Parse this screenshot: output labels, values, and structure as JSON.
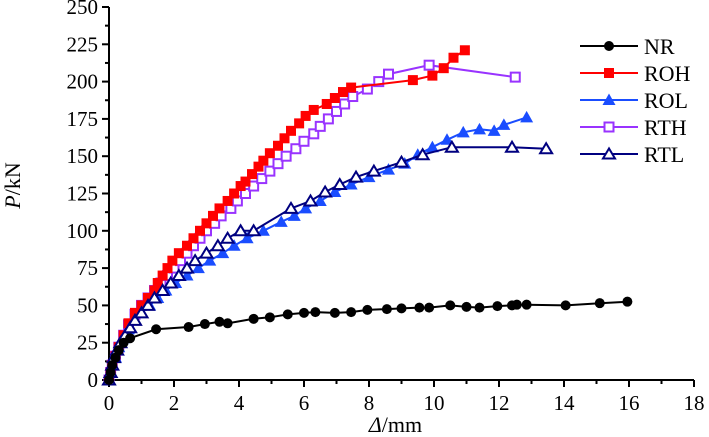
{
  "chart_data": {
    "type": "line",
    "title": "",
    "xlabel_italic": "Δ",
    "xlabel_unit": "/mm",
    "ylabel_italic": "P",
    "ylabel_unit": "/kN",
    "xlim": [
      0,
      18
    ],
    "ylim": [
      0,
      250
    ],
    "xticks": [
      0,
      2,
      4,
      6,
      8,
      10,
      12,
      14,
      16,
      18
    ],
    "yticks": [
      0,
      25,
      50,
      75,
      100,
      125,
      150,
      175,
      200,
      225,
      250
    ],
    "grid": false,
    "legend_position": "top-right",
    "series": [
      {
        "name": "NR",
        "color": "#000000",
        "marker": "circle-filled",
        "x": [
          0,
          0.05,
          0.1,
          0.2,
          0.3,
          0.45,
          0.65,
          1.45,
          2.45,
          2.95,
          3.4,
          3.65,
          4.45,
          4.95,
          5.5,
          6.0,
          6.35,
          6.95,
          7.45,
          7.95,
          8.55,
          9.0,
          9.55,
          9.85,
          10.5,
          11.0,
          11.4,
          11.95,
          12.4,
          12.55,
          12.85,
          14.05,
          15.1,
          15.95
        ],
        "y": [
          0,
          5,
          10,
          15,
          20,
          25,
          28,
          34,
          35.5,
          37.5,
          39,
          38,
          41,
          42,
          44,
          45,
          45.5,
          45,
          45.5,
          47,
          47.5,
          48,
          48.5,
          48.5,
          50,
          49,
          48.5,
          49.5,
          50,
          50.5,
          50.5,
          50,
          51.5,
          52.5
        ]
      },
      {
        "name": "ROH",
        "color": "#ff0000",
        "marker": "square-filled",
        "x": [
          0,
          0.05,
          0.1,
          0.2,
          0.3,
          0.45,
          0.6,
          0.8,
          1.0,
          1.2,
          1.4,
          1.5,
          1.65,
          1.8,
          1.95,
          2.15,
          2.4,
          2.6,
          2.8,
          3.0,
          3.2,
          3.4,
          3.65,
          3.85,
          4.05,
          4.2,
          4.4,
          4.6,
          4.75,
          4.95,
          5.2,
          5.4,
          5.6,
          5.85,
          6.05,
          6.3,
          6.7,
          6.95,
          7.2,
          7.45,
          9.35,
          9.95,
          10.3,
          10.6,
          10.95
        ],
        "y": [
          0,
          5,
          10,
          16,
          22,
          30,
          38,
          45,
          50,
          55,
          60,
          65,
          70,
          75,
          80,
          85,
          90,
          95,
          100,
          105,
          110,
          115,
          120,
          125,
          130,
          133,
          138,
          143,
          147,
          152,
          157,
          162,
          167,
          172,
          177,
          181,
          185,
          189,
          193,
          196,
          201,
          204,
          209,
          216,
          221
        ]
      },
      {
        "name": "ROL",
        "color": "#1a4dff",
        "marker": "triangle-filled",
        "x": [
          0,
          0.05,
          0.1,
          0.2,
          0.3,
          0.45,
          0.6,
          0.8,
          1.0,
          1.25,
          1.5,
          1.75,
          2.05,
          2.4,
          2.75,
          3.1,
          3.5,
          3.85,
          4.25,
          4.75,
          5.3,
          5.7,
          6.05,
          6.5,
          6.95,
          7.45,
          8.0,
          8.6,
          9.1,
          9.5,
          9.95,
          10.4,
          10.9,
          11.4,
          11.85,
          12.15,
          12.85
        ],
        "y": [
          0,
          5,
          10,
          15,
          22,
          28,
          34,
          40,
          45,
          50,
          55,
          60,
          65,
          70,
          75,
          80,
          85,
          90,
          95,
          100,
          106,
          110,
          115,
          120,
          126,
          131,
          136,
          141,
          145,
          151,
          156,
          161,
          166,
          168,
          167,
          171,
          176
        ]
      },
      {
        "name": "RTH",
        "color": "#9933ff",
        "marker": "square-open",
        "x": [
          0,
          0.05,
          0.1,
          0.2,
          0.3,
          0.45,
          0.6,
          0.8,
          1.0,
          1.2,
          1.4,
          1.6,
          1.8,
          2.0,
          2.2,
          2.4,
          2.6,
          2.8,
          3.0,
          3.25,
          3.45,
          3.75,
          3.95,
          4.2,
          4.45,
          4.7,
          4.95,
          5.2,
          5.45,
          5.75,
          6.0,
          6.3,
          6.5,
          6.75,
          7.0,
          7.25,
          7.5,
          7.95,
          8.3,
          8.6,
          9.85,
          12.5
        ],
        "y": [
          0,
          5,
          10,
          16,
          22,
          30,
          37,
          44,
          50,
          55,
          60,
          65,
          70,
          75,
          80,
          85,
          90,
          95,
          100,
          105,
          110,
          115,
          120,
          125,
          130,
          135,
          140,
          145,
          150,
          155,
          160,
          165,
          170,
          175,
          180,
          185,
          190,
          195,
          200,
          205,
          211,
          203
        ]
      },
      {
        "name": "RTL",
        "color": "#000080",
        "marker": "triangle-open",
        "x": [
          0,
          0.05,
          0.1,
          0.15,
          0.25,
          0.35,
          0.5,
          0.65,
          0.8,
          1.0,
          1.2,
          1.4,
          1.65,
          1.9,
          2.15,
          2.4,
          2.65,
          3.0,
          3.35,
          3.65,
          4.05,
          4.45,
          5.6,
          6.2,
          6.65,
          7.1,
          7.6,
          8.15,
          9.0,
          9.65,
          10.55,
          12.4,
          13.45
        ],
        "y": [
          0,
          5,
          10,
          15,
          20,
          25,
          30,
          35,
          40,
          45,
          50,
          55,
          60,
          65,
          70,
          75,
          80,
          85,
          90,
          95,
          100,
          100,
          115,
          120,
          126,
          131,
          136,
          140,
          146,
          151,
          156,
          156,
          155
        ]
      }
    ]
  }
}
